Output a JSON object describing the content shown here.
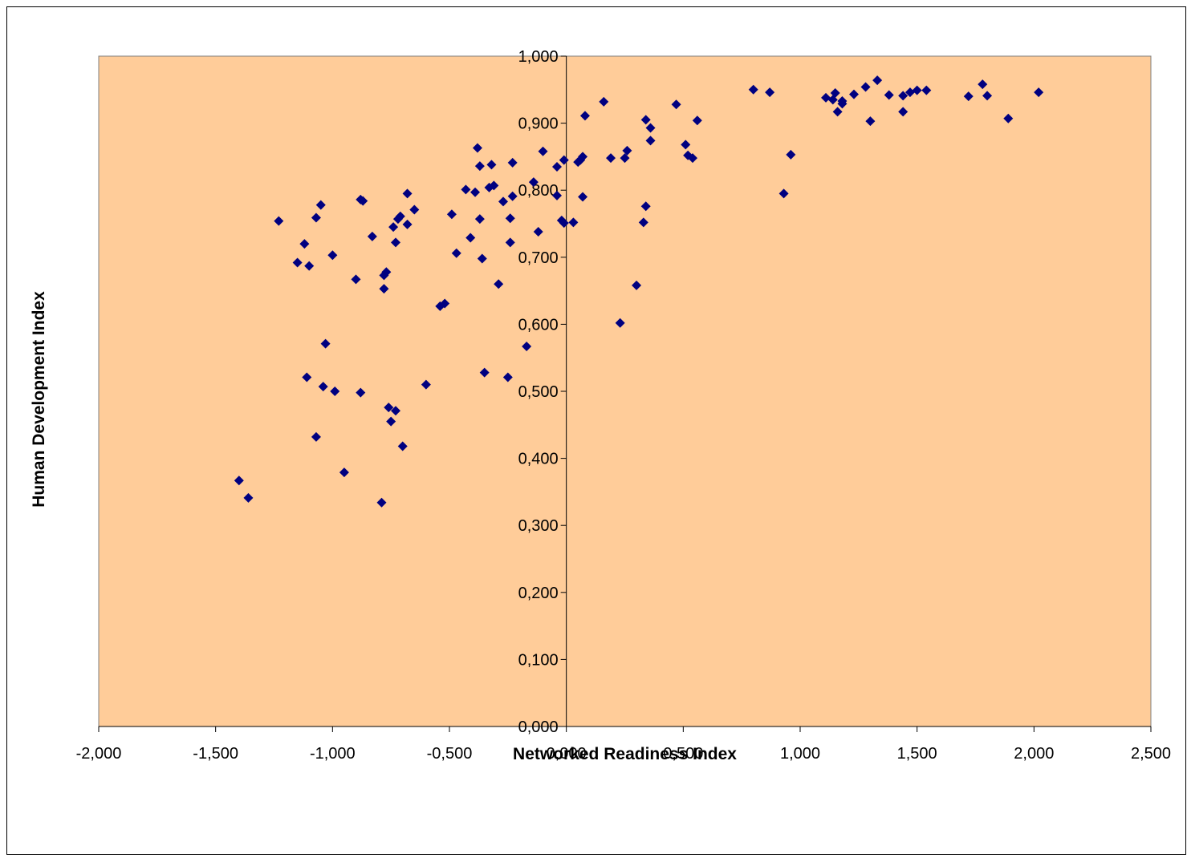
{
  "chart_data": {
    "type": "scatter",
    "xlabel": "Networked Readiness Index",
    "ylabel": "Human Development Index",
    "xlim": [
      -2.0,
      2.5
    ],
    "ylim": [
      0.0,
      1.0
    ],
    "x_ticks": [
      -2.0,
      -1.5,
      -1.0,
      -0.5,
      0.0,
      0.5,
      1.0,
      1.5,
      2.0,
      2.5
    ],
    "y_ticks": [
      0.0,
      0.1,
      0.2,
      0.3,
      0.4,
      0.5,
      0.6,
      0.7,
      0.8,
      0.9,
      1.0
    ],
    "x_tick_labels": [
      "-2,000",
      "-1,500",
      "-1,000",
      "-0,500",
      "0,000",
      "0,500",
      "1,000",
      "1,500",
      "2,000",
      "2,500"
    ],
    "y_tick_labels": [
      "0,000",
      "0,100",
      "0,200",
      "0,300",
      "0,400",
      "0,500",
      "0,600",
      "0,700",
      "0,800",
      "0,900",
      "1,000"
    ],
    "grid": false,
    "legend": "none",
    "colors": {
      "plot_background": "#FFCC99",
      "marker": "#000080",
      "axis": "#000000"
    },
    "series": [
      {
        "points": [
          [
            -1.4,
            0.367
          ],
          [
            -1.36,
            0.341
          ],
          [
            -1.23,
            0.754
          ],
          [
            -1.15,
            0.692
          ],
          [
            -1.12,
            0.72
          ],
          [
            -1.11,
            0.521
          ],
          [
            -1.1,
            0.687
          ],
          [
            -1.07,
            0.759
          ],
          [
            -1.07,
            0.432
          ],
          [
            -1.05,
            0.778
          ],
          [
            -1.04,
            0.507
          ],
          [
            -1.03,
            0.571
          ],
          [
            -1.0,
            0.703
          ],
          [
            -0.99,
            0.5
          ],
          [
            -0.95,
            0.379
          ],
          [
            -0.9,
            0.667
          ],
          [
            -0.88,
            0.786
          ],
          [
            -0.88,
            0.498
          ],
          [
            -0.87,
            0.784
          ],
          [
            -0.83,
            0.731
          ],
          [
            -0.79,
            0.334
          ],
          [
            -0.78,
            0.653
          ],
          [
            -0.78,
            0.673
          ],
          [
            -0.77,
            0.678
          ],
          [
            -0.76,
            0.476
          ],
          [
            -0.75,
            0.455
          ],
          [
            -0.74,
            0.745
          ],
          [
            -0.73,
            0.722
          ],
          [
            -0.73,
            0.471
          ],
          [
            -0.72,
            0.757
          ],
          [
            -0.71,
            0.761
          ],
          [
            -0.7,
            0.418
          ],
          [
            -0.68,
            0.795
          ],
          [
            -0.68,
            0.749
          ],
          [
            -0.65,
            0.771
          ],
          [
            -0.6,
            0.51
          ],
          [
            -0.54,
            0.627
          ],
          [
            -0.52,
            0.631
          ],
          [
            -0.49,
            0.764
          ],
          [
            -0.47,
            0.706
          ],
          [
            -0.43,
            0.801
          ],
          [
            -0.41,
            0.729
          ],
          [
            -0.39,
            0.797
          ],
          [
            -0.38,
            0.863
          ],
          [
            -0.37,
            0.836
          ],
          [
            -0.37,
            0.757
          ],
          [
            -0.36,
            0.698
          ],
          [
            -0.35,
            0.528
          ],
          [
            -0.33,
            0.804
          ],
          [
            -0.32,
            0.838
          ],
          [
            -0.31,
            0.807
          ],
          [
            -0.29,
            0.66
          ],
          [
            -0.27,
            0.783
          ],
          [
            -0.25,
            0.521
          ],
          [
            -0.24,
            0.722
          ],
          [
            -0.24,
            0.758
          ],
          [
            -0.23,
            0.791
          ],
          [
            -0.23,
            0.841
          ],
          [
            -0.17,
            0.567
          ],
          [
            -0.14,
            0.812
          ],
          [
            -0.12,
            0.738
          ],
          [
            -0.1,
            0.858
          ],
          [
            -0.04,
            0.792
          ],
          [
            -0.04,
            0.835
          ],
          [
            -0.02,
            0.755
          ],
          [
            -0.01,
            0.845
          ],
          [
            -0.01,
            0.751
          ],
          [
            0.03,
            0.752
          ],
          [
            0.05,
            0.842
          ],
          [
            0.06,
            0.845
          ],
          [
            0.07,
            0.79
          ],
          [
            0.07,
            0.85
          ],
          [
            0.08,
            0.911
          ],
          [
            0.16,
            0.932
          ],
          [
            0.19,
            0.848
          ],
          [
            0.23,
            0.602
          ],
          [
            0.25,
            0.848
          ],
          [
            0.26,
            0.859
          ],
          [
            0.3,
            0.658
          ],
          [
            0.33,
            0.752
          ],
          [
            0.34,
            0.905
          ],
          [
            0.34,
            0.776
          ],
          [
            0.36,
            0.893
          ],
          [
            0.36,
            0.874
          ],
          [
            0.47,
            0.928
          ],
          [
            0.51,
            0.868
          ],
          [
            0.52,
            0.852
          ],
          [
            0.54,
            0.848
          ],
          [
            0.56,
            0.904
          ],
          [
            0.8,
            0.95
          ],
          [
            0.87,
            0.946
          ],
          [
            0.93,
            0.795
          ],
          [
            0.96,
            0.853
          ],
          [
            1.11,
            0.938
          ],
          [
            1.14,
            0.935
          ],
          [
            1.15,
            0.945
          ],
          [
            1.16,
            0.917
          ],
          [
            1.18,
            0.933
          ],
          [
            1.18,
            0.929
          ],
          [
            1.23,
            0.943
          ],
          [
            1.28,
            0.954
          ],
          [
            1.3,
            0.903
          ],
          [
            1.33,
            0.964
          ],
          [
            1.38,
            0.942
          ],
          [
            1.44,
            0.941
          ],
          [
            1.44,
            0.917
          ],
          [
            1.47,
            0.946
          ],
          [
            1.5,
            0.949
          ],
          [
            1.54,
            0.949
          ],
          [
            1.72,
            0.94
          ],
          [
            1.78,
            0.958
          ],
          [
            1.8,
            0.941
          ],
          [
            1.89,
            0.907
          ],
          [
            2.02,
            0.946
          ]
        ]
      }
    ]
  }
}
